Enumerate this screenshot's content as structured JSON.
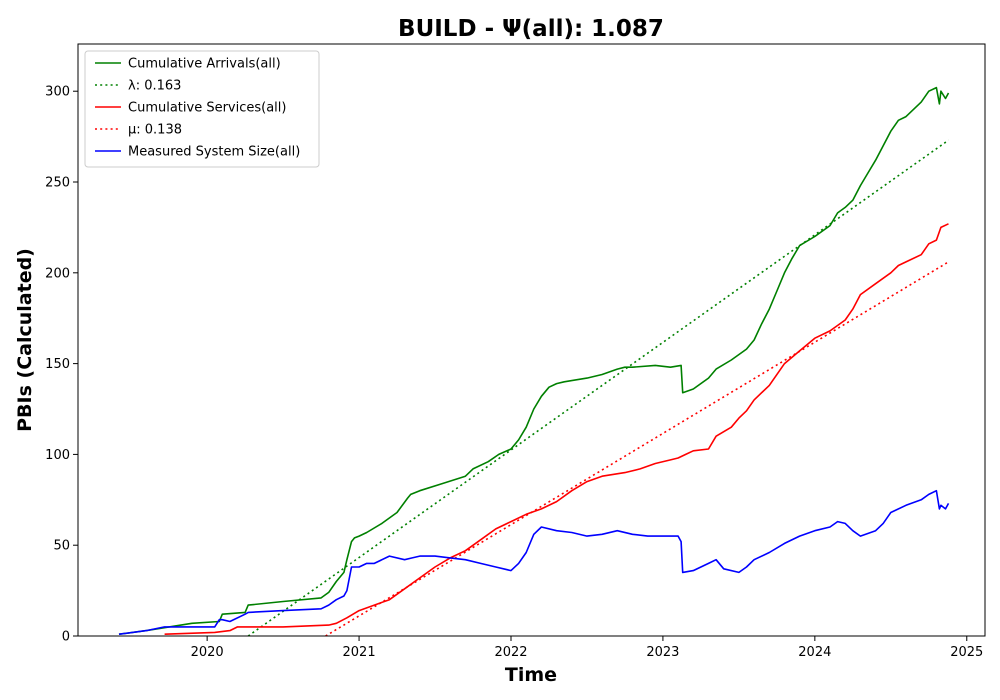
{
  "chart_data": {
    "type": "line",
    "title": "BUILD -  Ψ(all): 1.087",
    "xlabel": "Time",
    "ylabel": "PBIs (Calculated)",
    "xlim": [
      2019.15,
      2025.12
    ],
    "ylim": [
      0,
      326
    ],
    "x_ticks": [
      2020,
      2021,
      2022,
      2023,
      2024,
      2025
    ],
    "x_tick_labels": [
      "2020",
      "2021",
      "2022",
      "2023",
      "2024",
      "2025"
    ],
    "y_ticks": [
      0,
      50,
      100,
      150,
      200,
      250,
      300
    ],
    "y_tick_labels": [
      "0",
      "50",
      "100",
      "150",
      "200",
      "250",
      "300"
    ],
    "legend_position": "top-left",
    "grid": false,
    "series": [
      {
        "name": "Cumulative Arrivals(all)",
        "style": "solid",
        "color": "#008000",
        "x": [
          2019.42,
          2019.6,
          2019.75,
          2019.9,
          2020.08,
          2020.1,
          2020.25,
          2020.27,
          2020.5,
          2020.75,
          2020.8,
          2020.85,
          2020.9,
          2020.92,
          2020.95,
          2020.97,
          2021.0,
          2021.05,
          2021.15,
          2021.25,
          2021.32,
          2021.34,
          2021.4,
          2021.55,
          2021.7,
          2021.75,
          2021.85,
          2021.92,
          2022.0,
          2022.05,
          2022.1,
          2022.15,
          2022.2,
          2022.25,
          2022.3,
          2022.35,
          2022.5,
          2022.6,
          2022.7,
          2022.75,
          2022.8,
          2022.95,
          2023.05,
          2023.12,
          2023.13,
          2023.2,
          2023.3,
          2023.35,
          2023.45,
          2023.55,
          2023.6,
          2023.65,
          2023.7,
          2023.75,
          2023.8,
          2023.85,
          2023.9,
          2024.0,
          2024.1,
          2024.15,
          2024.2,
          2024.25,
          2024.3,
          2024.35,
          2024.4,
          2024.45,
          2024.5,
          2024.55,
          2024.6,
          2024.7,
          2024.75,
          2024.8,
          2024.82,
          2024.83,
          2024.86,
          2024.88
        ],
        "y": [
          1,
          3,
          5,
          7,
          8,
          12,
          13,
          17,
          19,
          21,
          24,
          30,
          35,
          42,
          52,
          54,
          55,
          57,
          62,
          68,
          76,
          78,
          80,
          84,
          88,
          92,
          96,
          100,
          103,
          108,
          115,
          125,
          132,
          137,
          139,
          140,
          142,
          144,
          147,
          148,
          148,
          149,
          148,
          149,
          134,
          136,
          142,
          147,
          152,
          158,
          163,
          172,
          180,
          190,
          200,
          208,
          215,
          220,
          226,
          233,
          236,
          240,
          248,
          255,
          262,
          270,
          278,
          284,
          286,
          294,
          300,
          302,
          293,
          300,
          296,
          299
        ]
      },
      {
        "name": "λ: 0.163",
        "style": "dotted",
        "color": "#008000",
        "x": [
          2020.27,
          2024.88
        ],
        "y": [
          0,
          273
        ]
      },
      {
        "name": "Cumulative Services(all)",
        "style": "solid",
        "color": "#ff0000",
        "x": [
          2019.72,
          2020.05,
          2020.15,
          2020.2,
          2020.5,
          2020.8,
          2020.85,
          2020.92,
          2021.0,
          2021.1,
          2021.2,
          2021.3,
          2021.4,
          2021.5,
          2021.6,
          2021.7,
          2021.8,
          2021.9,
          2022.0,
          2022.1,
          2022.2,
          2022.3,
          2022.4,
          2022.5,
          2022.6,
          2022.75,
          2022.85,
          2022.95,
          2023.05,
          2023.1,
          2023.15,
          2023.2,
          2023.3,
          2023.35,
          2023.45,
          2023.5,
          2023.55,
          2023.6,
          2023.7,
          2023.8,
          2023.9,
          2024.0,
          2024.1,
          2024.2,
          2024.25,
          2024.3,
          2024.4,
          2024.5,
          2024.55,
          2024.6,
          2024.7,
          2024.75,
          2024.8,
          2024.83,
          2024.88
        ],
        "y": [
          1,
          2,
          3,
          5,
          5,
          6,
          7,
          10,
          14,
          17,
          20,
          26,
          32,
          38,
          43,
          47,
          53,
          59,
          63,
          67,
          70,
          74,
          80,
          85,
          88,
          90,
          92,
          95,
          97,
          98,
          100,
          102,
          103,
          110,
          115,
          120,
          124,
          130,
          138,
          150,
          157,
          164,
          168,
          174,
          180,
          188,
          194,
          200,
          204,
          206,
          210,
          216,
          218,
          225,
          227
        ]
      },
      {
        "name": "μ: 0.138",
        "style": "dotted",
        "color": "#ff0000",
        "x": [
          2020.78,
          2024.88
        ],
        "y": [
          0,
          206
        ]
      },
      {
        "name": "Measured System Size(all)",
        "style": "solid",
        "color": "#0000ff",
        "x": [
          2019.42,
          2019.6,
          2019.72,
          2019.9,
          2020.05,
          2020.08,
          2020.1,
          2020.15,
          2020.25,
          2020.27,
          2020.5,
          2020.75,
          2020.8,
          2020.85,
          2020.9,
          2020.92,
          2020.95,
          2021.0,
          2021.05,
          2021.1,
          2021.2,
          2021.3,
          2021.35,
          2021.4,
          2021.5,
          2021.6,
          2021.7,
          2021.8,
          2021.9,
          2022.0,
          2022.05,
          2022.1,
          2022.15,
          2022.2,
          2022.3,
          2022.4,
          2022.5,
          2022.6,
          2022.7,
          2022.8,
          2022.9,
          2023.0,
          2023.1,
          2023.12,
          2023.13,
          2023.2,
          2023.3,
          2023.35,
          2023.4,
          2023.5,
          2023.55,
          2023.6,
          2023.7,
          2023.8,
          2023.9,
          2024.0,
          2024.1,
          2024.15,
          2024.2,
          2024.25,
          2024.3,
          2024.4,
          2024.45,
          2024.5,
          2024.6,
          2024.7,
          2024.75,
          2024.8,
          2024.82,
          2024.83,
          2024.86,
          2024.88
        ],
        "y": [
          1,
          3,
          5,
          5,
          5,
          9,
          9,
          8,
          12,
          13,
          14,
          15,
          17,
          20,
          22,
          25,
          38,
          38,
          40,
          40,
          44,
          42,
          43,
          44,
          44,
          43,
          42,
          40,
          38,
          36,
          40,
          46,
          56,
          60,
          58,
          57,
          55,
          56,
          58,
          56,
          55,
          55,
          55,
          52,
          35,
          36,
          40,
          42,
          37,
          35,
          38,
          42,
          46,
          51,
          55,
          58,
          60,
          63,
          62,
          58,
          55,
          58,
          62,
          68,
          72,
          75,
          78,
          80,
          70,
          72,
          70,
          73
        ]
      }
    ]
  }
}
